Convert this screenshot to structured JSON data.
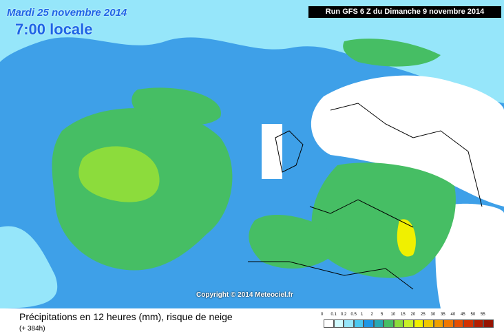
{
  "header": {
    "date": "Mardi 25 novembre 2014",
    "time": "7:00 locale",
    "run": "Run GFS 6 Z du Dimanche 9 novembre 2014"
  },
  "copyright": "Copyright © 2014 Meteociel.fr",
  "footer": {
    "title": "Précipitations en 12 heures (mm), risque de neige",
    "lead": "(+ 384h)"
  },
  "legend": [
    {
      "label": 0,
      "color": "#ffffff"
    },
    {
      "label": 0.1,
      "color": "#d2fbff"
    },
    {
      "label": 0.2,
      "color": "#96e6fa"
    },
    {
      "label": 0.5,
      "color": "#4bc8f0"
    },
    {
      "label": 1,
      "color": "#1e96e6"
    },
    {
      "label": 2,
      "color": "#28a8b4"
    },
    {
      "label": 5,
      "color": "#46be64"
    },
    {
      "label": 10,
      "color": "#8cdc3c"
    },
    {
      "label": 15,
      "color": "#c8f028"
    },
    {
      "label": 20,
      "color": "#f0f000"
    },
    {
      "label": 25,
      "color": "#f0c800"
    },
    {
      "label": 30,
      "color": "#f0a000"
    },
    {
      "label": 35,
      "color": "#f07800"
    },
    {
      "label": 40,
      "color": "#e65000"
    },
    {
      "label": 45,
      "color": "#d23200"
    },
    {
      "label": 50,
      "color": "#b41e00"
    },
    {
      "label": 55,
      "color": "#961400"
    }
  ]
}
